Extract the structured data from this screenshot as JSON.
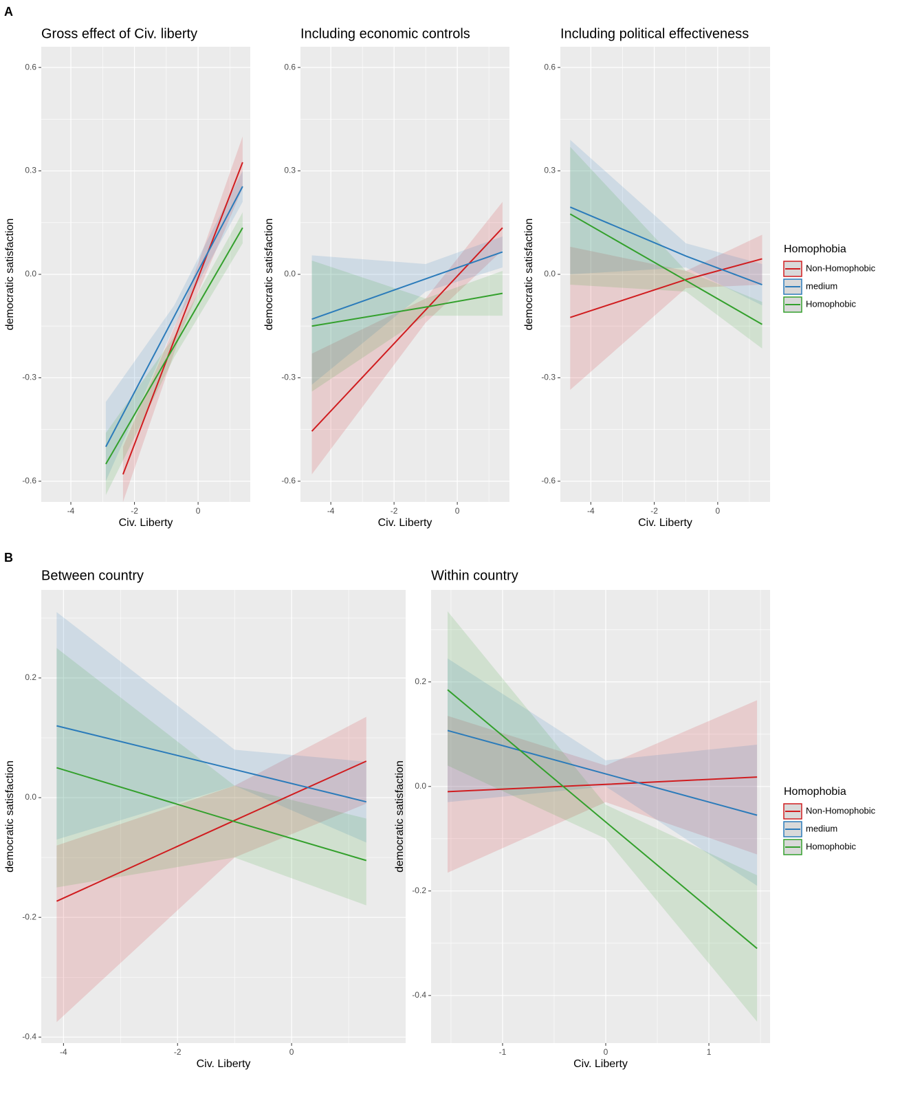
{
  "panel_labels": [
    "A",
    "B"
  ],
  "chart_data": [
    {
      "type": "line",
      "title": "Gross effect of Civ. liberty",
      "xlabel": "Civ. Liberty",
      "ylabel": "democratic satisfaction",
      "xlim": [
        -4.93,
        1.64
      ],
      "ylim": [
        -0.66,
        0.66
      ],
      "xticks": [
        -4,
        -2,
        0
      ],
      "yticks": [
        {
          "value": -0.6,
          "label": "-0.6"
        },
        -0.3,
        {
          "value": 0,
          "label": "0.0"
        },
        0.3,
        0.6
      ],
      "grid": true,
      "series": [
        {
          "name": "Non-Homophobic",
          "color": "#d01c1f",
          "x": [
            -2.36,
            -0.5,
            1.4
          ],
          "values": [
            -0.58,
            -0.13,
            0.325
          ],
          "lower": [
            -0.66,
            -0.16,
            0.25
          ],
          "upper": [
            -0.5,
            -0.1,
            0.4
          ]
        },
        {
          "name": "medium",
          "color": "#2b7bba",
          "x": [
            -2.9,
            -0.75,
            1.4
          ],
          "values": [
            -0.5,
            -0.122,
            0.255
          ],
          "lower": [
            -0.6,
            -0.15,
            0.21
          ],
          "upper": [
            -0.37,
            -0.09,
            0.3
          ]
        },
        {
          "name": "Homophobic",
          "color": "#33a02c",
          "x": [
            -2.9,
            -0.75,
            1.4
          ],
          "values": [
            -0.55,
            -0.208,
            0.135
          ],
          "lower": [
            -0.64,
            -0.24,
            0.09
          ],
          "upper": [
            -0.46,
            -0.18,
            0.18
          ]
        }
      ]
    },
    {
      "type": "line",
      "title": "Including economic controls",
      "xlabel": "Civ. Liberty",
      "ylabel": "democratic satisfaction",
      "xlim": [
        -4.96,
        1.65
      ],
      "ylim": [
        -0.66,
        0.66
      ],
      "xticks": [
        -4,
        -2,
        0
      ],
      "yticks": [
        {
          "value": -0.6,
          "label": "-0.6"
        },
        -0.3,
        {
          "value": 0,
          "label": "0.0"
        },
        0.3,
        0.6
      ],
      "grid": true,
      "series": [
        {
          "name": "Non-Homophobic",
          "color": "#d01c1f",
          "x": [
            -4.6,
            -1,
            1.43
          ],
          "values": [
            -0.455,
            -0.103,
            0.135
          ],
          "lower": [
            -0.58,
            -0.14,
            0.07
          ],
          "upper": [
            -0.23,
            -0.07,
            0.21
          ]
        },
        {
          "name": "medium",
          "color": "#2b7bba",
          "x": [
            -4.6,
            -1,
            1.43
          ],
          "values": [
            -0.13,
            -0.013,
            0.065
          ],
          "lower": [
            -0.32,
            -0.05,
            0.02
          ],
          "upper": [
            0.055,
            0.03,
            0.11
          ]
        },
        {
          "name": "Homophobic",
          "color": "#33a02c",
          "x": [
            -4.6,
            -1,
            1.43
          ],
          "values": [
            -0.15,
            -0.095,
            -0.055
          ],
          "lower": [
            -0.34,
            -0.12,
            -0.12
          ],
          "upper": [
            0.04,
            -0.07,
            0.01
          ]
        }
      ]
    },
    {
      "type": "line",
      "title": "Including political effectiveness",
      "xlabel": "Civ. Liberty",
      "ylabel": "democratic satisfaction",
      "xlim": [
        -4.96,
        1.65
      ],
      "ylim": [
        -0.66,
        0.66
      ],
      "xticks": [
        -4,
        -2,
        0
      ],
      "yticks": [
        {
          "value": -0.6,
          "label": "-0.6"
        },
        -0.3,
        {
          "value": 0,
          "label": "0.0"
        },
        0.3,
        0.6
      ],
      "grid": true,
      "legend": "right",
      "legend_title": "Homophobia",
      "series": [
        {
          "name": "Non-Homophobic",
          "color": "#d01c1f",
          "x": [
            -4.65,
            -1,
            1.4
          ],
          "values": [
            -0.125,
            -0.015,
            0.045
          ],
          "lower": [
            -0.335,
            -0.04,
            -0.03
          ],
          "upper": [
            0.08,
            0.01,
            0.115
          ]
        },
        {
          "name": "medium",
          "color": "#2b7bba",
          "x": [
            -4.65,
            -1,
            1.4
          ],
          "values": [
            0.195,
            0.053,
            -0.03
          ],
          "lower": [
            0.0,
            0.02,
            -0.09
          ],
          "upper": [
            0.39,
            0.09,
            0.03
          ]
        },
        {
          "name": "Homophobic",
          "color": "#33a02c",
          "x": [
            -4.65,
            -1,
            1.4
          ],
          "values": [
            0.175,
            -0.018,
            -0.145
          ],
          "lower": [
            -0.03,
            -0.05,
            -0.215
          ],
          "upper": [
            0.37,
            0.01,
            -0.08
          ]
        }
      ]
    },
    {
      "type": "line",
      "title": "Between country",
      "xlabel": "Civ. Liberty",
      "ylabel": "democratic satisfaction",
      "xlim": [
        -4.39,
        2.0
      ],
      "ylim": [
        -0.41,
        0.347
      ],
      "xticks": [
        -4,
        -2,
        0
      ],
      "yticks": [
        -0.4,
        -0.2,
        {
          "value": 0,
          "label": "0.0"
        },
        0.2
      ],
      "grid": true,
      "series": [
        {
          "name": "Non-Homophobic",
          "color": "#d01c1f",
          "x": [
            -4.12,
            -1,
            1.31
          ],
          "values": [
            -0.173,
            -0.038,
            0.061
          ],
          "lower": [
            -0.375,
            -0.1,
            -0.01
          ],
          "upper": [
            -0.08,
            0.02,
            0.135
          ]
        },
        {
          "name": "medium",
          "color": "#2b7bba",
          "x": [
            -4.12,
            -1,
            1.31
          ],
          "values": [
            0.12,
            0.047,
            -0.007
          ],
          "lower": [
            -0.07,
            0.02,
            -0.075
          ],
          "upper": [
            0.31,
            0.08,
            0.06
          ]
        },
        {
          "name": "Homophobic",
          "color": "#33a02c",
          "x": [
            -4.12,
            -1,
            1.31
          ],
          "values": [
            0.05,
            -0.04,
            -0.105
          ],
          "lower": [
            -0.15,
            -0.1,
            -0.18
          ],
          "upper": [
            0.25,
            0.02,
            -0.035
          ]
        }
      ]
    },
    {
      "type": "line",
      "title": "Within country",
      "xlabel": "Civ. Liberty",
      "ylabel": "democratic satisfaction",
      "xlim": [
        -1.693,
        1.593
      ],
      "ylim": [
        -0.491,
        0.376
      ],
      "xticks": [
        -1,
        0,
        1
      ],
      "yticks": [
        -0.4,
        -0.2,
        {
          "value": 0,
          "label": "0.0"
        },
        0.2
      ],
      "grid": true,
      "legend": "right",
      "legend_title": "Homophobia",
      "series": [
        {
          "name": "Non-Homophobic",
          "color": "#d01c1f",
          "x": [
            -1.533,
            0,
            1.467
          ],
          "values": [
            -0.01,
            0.004,
            0.018
          ],
          "lower": [
            -0.165,
            -0.03,
            -0.13
          ],
          "upper": [
            0.135,
            0.04,
            0.165
          ]
        },
        {
          "name": "medium",
          "color": "#2b7bba",
          "x": [
            -1.533,
            0,
            1.467
          ],
          "values": [
            0.107,
            0.024,
            -0.055
          ],
          "lower": [
            -0.03,
            0.0,
            -0.19
          ],
          "upper": [
            0.245,
            0.05,
            0.08
          ]
        },
        {
          "name": "Homophobic",
          "color": "#33a02c",
          "x": [
            -1.533,
            0,
            1.467
          ],
          "values": [
            0.185,
            -0.068,
            -0.31
          ],
          "lower": [
            0.04,
            -0.1,
            -0.45
          ],
          "upper": [
            0.335,
            -0.035,
            -0.17
          ]
        }
      ]
    }
  ]
}
